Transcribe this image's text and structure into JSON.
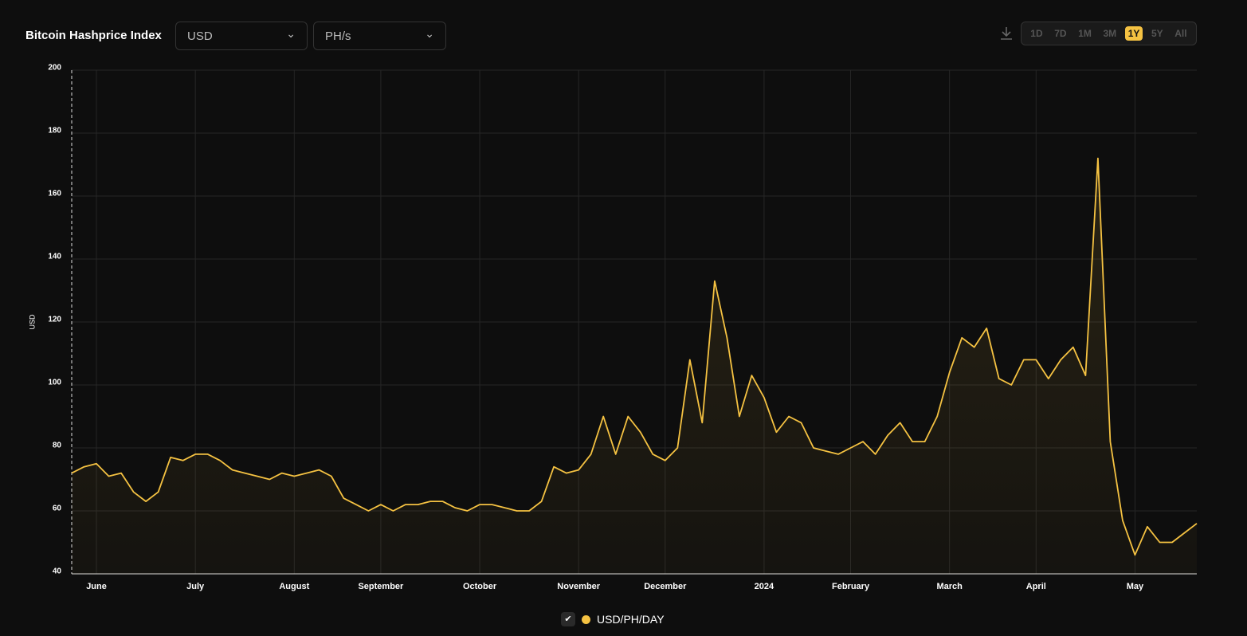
{
  "header": {
    "title": "Bitcoin Hashprice Index",
    "currency": "USD",
    "unit": "PH/s",
    "ranges": [
      "1D",
      "7D",
      "1M",
      "3M",
      "1Y",
      "5Y",
      "All"
    ],
    "active_range": 4
  },
  "chart_data": {
    "type": "line",
    "ylabel": "USD",
    "categories": [
      null,
      null,
      "June",
      null,
      null,
      null,
      null,
      null,
      null,
      null,
      "July",
      null,
      null,
      null,
      null,
      null,
      null,
      null,
      "August",
      null,
      null,
      null,
      null,
      null,
      null,
      "September",
      null,
      null,
      null,
      null,
      null,
      null,
      null,
      "October",
      null,
      null,
      null,
      null,
      null,
      null,
      null,
      "November",
      null,
      null,
      null,
      null,
      null,
      null,
      "December",
      null,
      null,
      null,
      null,
      null,
      null,
      null,
      "2024",
      null,
      null,
      null,
      null,
      null,
      null,
      "February",
      null,
      null,
      null,
      null,
      null,
      null,
      null,
      "March",
      null,
      null,
      null,
      null,
      null,
      null,
      "April",
      null,
      null,
      null,
      null,
      null,
      null,
      null,
      "May",
      null,
      null,
      null,
      null,
      null
    ],
    "series": [
      {
        "name": "USD/PH/DAY",
        "color": "#f5c242",
        "values": [
          72,
          74,
          75,
          71,
          72,
          66,
          63,
          66,
          77,
          76,
          78,
          78,
          76,
          73,
          72,
          71,
          70,
          72,
          71,
          72,
          73,
          71,
          64,
          62,
          60,
          62,
          60,
          62,
          62,
          63,
          63,
          61,
          60,
          62,
          62,
          61,
          60,
          60,
          63,
          74,
          72,
          73,
          78,
          90,
          78,
          90,
          85,
          78,
          76,
          80,
          108,
          88,
          133,
          115,
          90,
          103,
          96,
          85,
          90,
          88,
          80,
          79,
          78,
          80,
          82,
          78,
          84,
          88,
          82,
          82,
          90,
          104,
          115,
          112,
          118,
          102,
          100,
          108,
          108,
          102,
          108,
          112,
          103,
          172,
          82,
          57,
          46,
          55,
          50,
          50,
          53,
          56
        ]
      }
    ],
    "ylim": [
      40,
      200
    ],
    "yticks": [
      40,
      60,
      80,
      100,
      120,
      140,
      160,
      180,
      200
    ],
    "grid": true
  }
}
